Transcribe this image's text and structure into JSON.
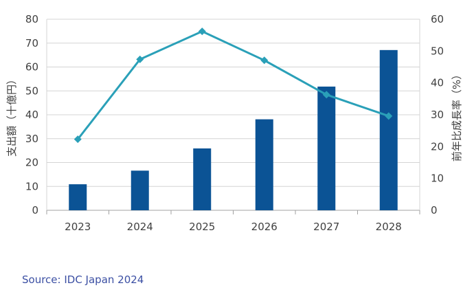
{
  "chart_data": {
    "type": "bar+line",
    "categories": [
      "2023",
      "2024",
      "2025",
      "2026",
      "2027",
      "2028"
    ],
    "series": [
      {
        "name": "支出額",
        "type": "bar",
        "axis": "left",
        "values": [
          10.9,
          16.6,
          25.9,
          38.1,
          51.8,
          67.1
        ],
        "color": "#0b5395"
      },
      {
        "name": "前年比成長率",
        "type": "line",
        "axis": "right",
        "values": [
          22.3,
          47.4,
          56.2,
          47.1,
          36.3,
          29.6
        ],
        "color": "#2aa0b8"
      }
    ],
    "ylabel_left": "支出額（十億円）",
    "ylabel_right": "前年比成長率（%）",
    "ylim_left": [
      0,
      80
    ],
    "ylim_right": [
      0,
      60
    ],
    "yticks_left": [
      "0",
      "10",
      "20",
      "30",
      "40",
      "50",
      "60",
      "70",
      "80"
    ],
    "yticks_right": [
      "0",
      "10",
      "20",
      "30",
      "40",
      "50",
      "60"
    ],
    "grid": true
  },
  "source": "Source: IDC Japan 2024"
}
